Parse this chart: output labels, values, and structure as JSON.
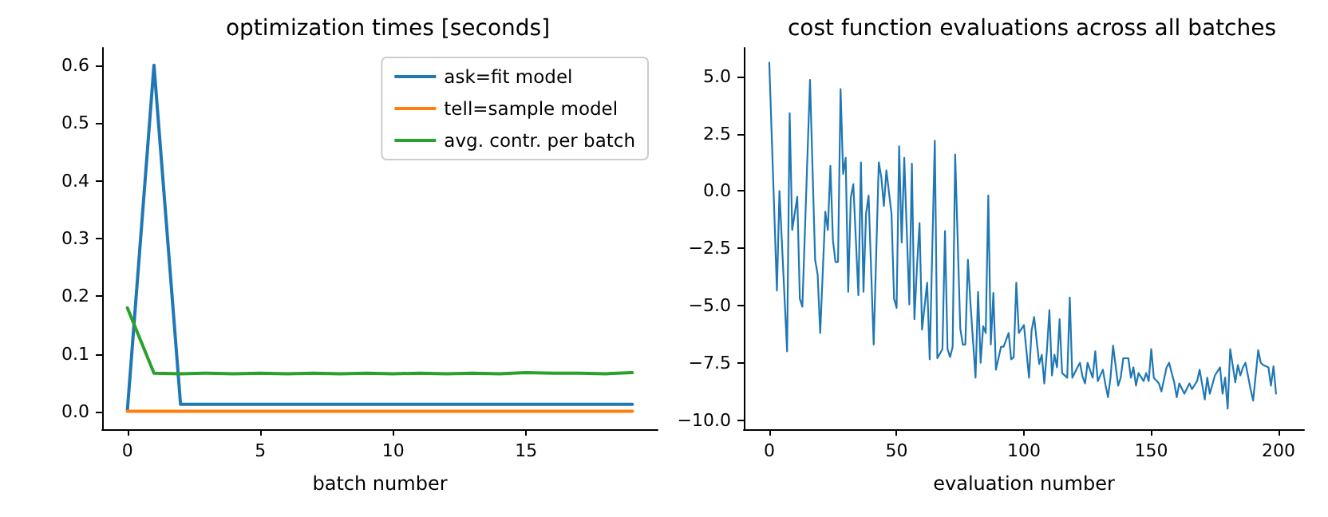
{
  "chart_data": [
    {
      "type": "line",
      "title": "optimization times [seconds]",
      "xlabel": "batch number",
      "x": [
        0,
        1,
        2,
        3,
        4,
        5,
        6,
        7,
        8,
        9,
        10,
        11,
        12,
        13,
        14,
        15,
        16,
        17,
        18,
        19
      ],
      "xlim": [
        -0.95,
        19.95
      ],
      "xticks": [
        0,
        5,
        10,
        15
      ],
      "ylim": [
        -0.03,
        0.63
      ],
      "yticks": [
        {
          "value": 0,
          "label": "0.0"
        },
        0.1,
        0.2,
        0.3,
        0.4,
        0.5,
        0.6
      ],
      "grid": false,
      "legend": "top right",
      "marker": "none",
      "line_style": "solid",
      "series": [
        {
          "name": "ask=fit model",
          "color": "#1f77b4",
          "values": [
            0.003,
            0.6,
            0.013,
            0.013,
            0.013,
            0.013,
            0.013,
            0.013,
            0.013,
            0.013,
            0.013,
            0.013,
            0.013,
            0.013,
            0.013,
            0.013,
            0.013,
            0.013,
            0.013,
            0.013
          ]
        },
        {
          "name": "tell=sample model",
          "color": "#ff7f0e",
          "values": [
            0.001,
            0.001,
            0.001,
            0.001,
            0.001,
            0.001,
            0.001,
            0.001,
            0.001,
            0.001,
            0.001,
            0.001,
            0.001,
            0.001,
            0.001,
            0.001,
            0.001,
            0.001,
            0.001,
            0.001
          ]
        },
        {
          "name": "avg. contr. per batch",
          "color": "#2ca02c",
          "values": [
            0.18,
            0.067,
            0.066,
            0.067,
            0.066,
            0.067,
            0.066,
            0.067,
            0.066,
            0.067,
            0.066,
            0.067,
            0.066,
            0.067,
            0.066,
            0.068,
            0.067,
            0.067,
            0.066,
            0.068
          ]
        }
      ]
    },
    {
      "type": "line",
      "title": "cost function evaluations across all batches",
      "xlabel": "evaluation number",
      "xlim": [
        -10,
        210
      ],
      "xticks": [
        0,
        50,
        100,
        150,
        200
      ],
      "ylim": [
        -10.4,
        6.25
      ],
      "yticks": [
        {
          "value": -10,
          "label": "−10.0"
        },
        {
          "value": -7.5,
          "label": "−7.5"
        },
        {
          "value": -5,
          "label": "−5.0"
        },
        {
          "value": -2.5,
          "label": "−2.5"
        },
        {
          "value": 0,
          "label": "0.0"
        },
        {
          "value": 2.5,
          "label": "2.5"
        },
        {
          "value": 5,
          "label": "5.0"
        }
      ],
      "grid": false,
      "legend": false,
      "marker": "none",
      "line_style": "solid",
      "series": [
        {
          "color": "#1f77b4",
          "x": [
            0,
            3,
            4,
            7,
            8,
            9,
            11,
            12,
            13,
            16,
            18,
            19,
            20,
            22,
            23,
            24,
            25,
            26,
            27,
            28,
            29,
            30,
            31,
            32,
            33,
            35,
            36,
            37,
            38,
            39,
            41,
            43,
            44,
            45,
            46,
            48,
            49,
            50,
            51,
            52,
            53,
            55,
            56,
            57,
            58,
            59,
            60,
            62,
            63,
            65,
            66,
            68,
            69,
            70,
            71,
            72,
            73,
            75,
            76,
            77,
            78,
            79,
            81,
            82,
            83,
            84,
            85,
            86,
            87,
            88,
            89,
            91,
            92,
            94,
            95,
            96,
            97,
            98,
            100,
            101,
            102,
            103,
            104,
            106,
            107,
            108,
            109,
            110,
            111,
            112,
            113,
            114,
            115,
            117,
            118,
            119,
            121,
            122,
            123,
            124,
            125,
            127,
            128,
            129,
            131,
            132,
            133,
            134,
            135,
            137,
            138,
            139,
            141,
            142,
            143,
            144,
            145,
            147,
            148,
            149,
            150,
            151,
            153,
            154,
            156,
            157,
            159,
            160,
            161,
            163,
            165,
            166,
            168,
            169,
            171,
            172,
            173,
            175,
            177,
            178,
            179,
            180,
            181,
            183,
            184,
            185,
            186,
            187,
            189,
            190,
            192,
            193,
            194,
            196,
            197,
            198,
            199
          ],
          "values": [
            5.6,
            -4.35,
            0,
            -7.0,
            3.4,
            -1.7,
            -0.25,
            -4.7,
            -5.05,
            4.85,
            -3.0,
            -3.65,
            -6.2,
            -0.9,
            -1.7,
            1.1,
            -2.15,
            -3.1,
            -3.1,
            4.45,
            0.75,
            1.45,
            -4.4,
            -0.3,
            0.3,
            -4.55,
            1.25,
            -4.4,
            -1.0,
            -0.2,
            -6.7,
            1.25,
            0.6,
            -0.65,
            0.9,
            -1.0,
            -4.7,
            -5.1,
            1.95,
            -2.25,
            1.45,
            -4.95,
            1.2,
            -5.6,
            -3.3,
            -1.4,
            -6.05,
            -4.0,
            -7.35,
            2.2,
            -7.3,
            -6.9,
            -1.75,
            -6.9,
            -7.25,
            -6.8,
            1.6,
            -6.0,
            -6.7,
            -6.7,
            -3.0,
            -4.9,
            -8.15,
            -4.4,
            -7.5,
            -5.9,
            -6.2,
            -0.2,
            -6.7,
            -4.45,
            -7.8,
            -6.8,
            -6.8,
            -6.2,
            -7.35,
            -7.25,
            -4.0,
            -6.2,
            -5.85,
            -7.0,
            -8.15,
            -6.1,
            -5.5,
            -7.55,
            -7.15,
            -8.4,
            -7.0,
            -5.2,
            -8.05,
            -7.15,
            -7.7,
            -5.6,
            -7.95,
            -8.15,
            -4.65,
            -8.15,
            -7.7,
            -7.5,
            -8.1,
            -8.4,
            -7.5,
            -8.15,
            -7.0,
            -8.3,
            -7.8,
            -8.45,
            -9.0,
            -8.15,
            -6.75,
            -8.5,
            -8.15,
            -7.3,
            -7.3,
            -8.15,
            -7.7,
            -8.5,
            -7.95,
            -8.3,
            -7.95,
            -8.3,
            -6.9,
            -8.15,
            -8.4,
            -8.75,
            -7.7,
            -7.5,
            -8.35,
            -9.0,
            -8.4,
            -8.85,
            -8.4,
            -8.65,
            -8.3,
            -7.8,
            -9.1,
            -8.15,
            -8.85,
            -8.05,
            -7.7,
            -8.85,
            -8.15,
            -9.5,
            -6.9,
            -8.35,
            -7.6,
            -8.05,
            -7.7,
            -7.5,
            -8.65,
            -9.15,
            -6.95,
            -7.5,
            -7.6,
            -7.7,
            -8.5,
            -7.65,
            -8.85
          ]
        }
      ]
    }
  ]
}
